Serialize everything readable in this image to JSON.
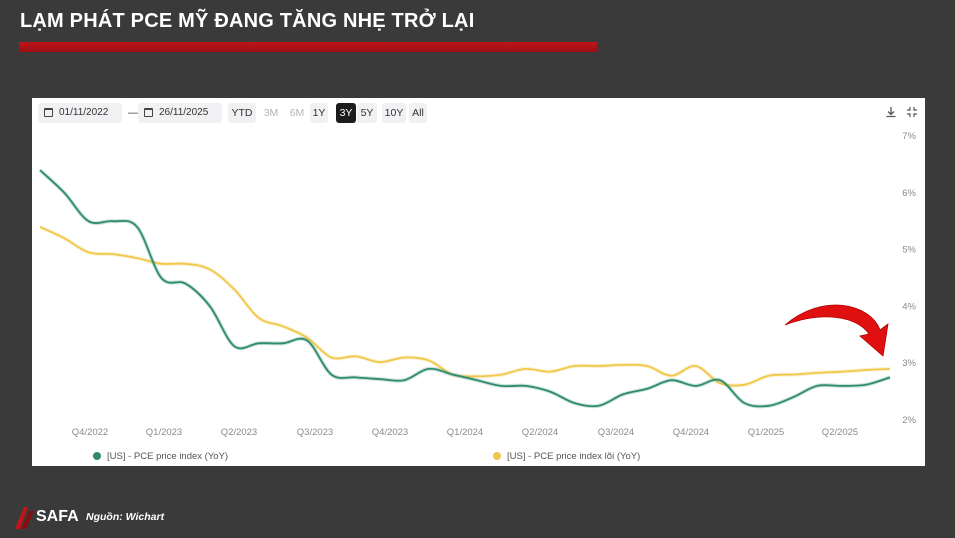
{
  "header": {
    "title": "LẠM PHÁT PCE MỸ ĐANG TĂNG NHẸ TRỞ LẠI"
  },
  "toolbar": {
    "start_date": "01/11/2022",
    "separator": "—",
    "end_date": "26/11/2025",
    "ranges": [
      {
        "label": "YTD",
        "state": "normal"
      },
      {
        "label": "3M",
        "state": "disabled"
      },
      {
        "label": "6M",
        "state": "disabled"
      },
      {
        "label": "1Y",
        "state": "normal"
      },
      {
        "label": "3Y",
        "state": "active"
      },
      {
        "label": "5Y",
        "state": "normal"
      },
      {
        "label": "10Y",
        "state": "normal"
      },
      {
        "label": "All",
        "state": "normal"
      }
    ],
    "download_icon": "download-icon",
    "fullscreen_icon": "fullscreen-icon"
  },
  "footer": {
    "source": "Nguồn: Wichart",
    "logo_text": "SAFA"
  },
  "colors": {
    "background": "#3a3a3a",
    "accent": "#c0151b",
    "headline_series": "#2e8b6f",
    "core_series": "#f1c84b",
    "arrow": "#e01010"
  },
  "chart_data": {
    "type": "line",
    "y_axis_side": "right",
    "ylim": [
      2,
      7
    ],
    "y_ticks": [
      "7%",
      "6%",
      "5%",
      "4%",
      "3%",
      "2%"
    ],
    "x_tick_labels": [
      "Q4/2022",
      "Q1/2023",
      "Q2/2023",
      "Q3/2023",
      "Q4/2023",
      "Q1/2024",
      "Q2/2024",
      "Q3/2024",
      "Q4/2024",
      "Q1/2025",
      "Q2/2025"
    ],
    "x": [
      "2022-10",
      "2022-11",
      "2022-12",
      "2023-01",
      "2023-02",
      "2023-03",
      "2023-04",
      "2023-05",
      "2023-06",
      "2023-07",
      "2023-08",
      "2023-09",
      "2023-10",
      "2023-11",
      "2023-12",
      "2024-01",
      "2024-02",
      "2024-03",
      "2024-04",
      "2024-05",
      "2024-06",
      "2024-07",
      "2024-08",
      "2024-09",
      "2024-10",
      "2024-11",
      "2024-12",
      "2025-01",
      "2025-02",
      "2025-03",
      "2025-04",
      "2025-05",
      "2025-06",
      "2025-07",
      "2025-08",
      "2025-09"
    ],
    "series": [
      {
        "name": "[US] - PCE price index (YoY)",
        "color": "#2e8b6f",
        "values": [
          6.4,
          6.0,
          5.5,
          5.5,
          5.4,
          4.5,
          4.4,
          4.0,
          3.3,
          3.35,
          3.35,
          3.4,
          2.8,
          2.75,
          2.72,
          2.7,
          2.9,
          2.8,
          2.7,
          2.6,
          2.6,
          2.5,
          2.3,
          2.25,
          2.45,
          2.55,
          2.7,
          2.6,
          2.7,
          2.3,
          2.25,
          2.4,
          2.6,
          2.6,
          2.62,
          2.75
        ]
      },
      {
        "name": "[US] - PCE price index lõi (YoY)",
        "color": "#f1c84b",
        "values": [
          5.4,
          5.2,
          4.95,
          4.92,
          4.85,
          4.75,
          4.75,
          4.65,
          4.3,
          3.8,
          3.65,
          3.45,
          3.1,
          3.12,
          3.02,
          3.1,
          3.05,
          2.8,
          2.77,
          2.8,
          2.9,
          2.85,
          2.95,
          2.95,
          2.97,
          2.95,
          2.78,
          2.95,
          2.65,
          2.62,
          2.78,
          2.8,
          2.83,
          2.85,
          2.88,
          2.9
        ]
      }
    ],
    "grid": false,
    "legend_position": "bottom"
  }
}
